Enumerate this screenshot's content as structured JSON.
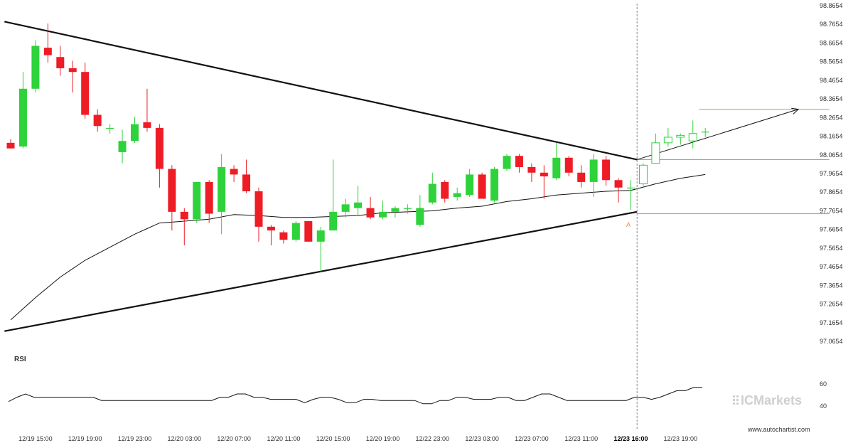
{
  "chart_data": {
    "type": "candlestick",
    "y_axis": {
      "min": 97.0654,
      "max": 98.8654,
      "ticks": [
        "98.8654",
        "98.7654",
        "98.6654",
        "98.5654",
        "98.4654",
        "98.3654",
        "98.2654",
        "98.1654",
        "98.0654",
        "97.9654",
        "97.8654",
        "97.7654",
        "97.6654",
        "97.5654",
        "97.4654",
        "97.3654",
        "97.2654",
        "97.1654",
        "97.0654"
      ]
    },
    "x_axis": {
      "tick_labels": [
        "12/19 15:00",
        "12/19 19:00",
        "12/19 23:00",
        "12/20 03:00",
        "12/20 07:00",
        "12/20 11:00",
        "12/20 15:00",
        "12/20 19:00",
        "12/22 23:00",
        "12/23 03:00",
        "12/23 07:00",
        "12/23 11:00",
        "12/23 16:00",
        "12/23 19:00"
      ],
      "tick_candle_index": [
        2,
        6,
        10,
        14,
        18,
        22,
        26,
        30,
        34,
        38,
        42,
        46,
        50,
        54
      ],
      "highlight_label": "12/23 16:00",
      "vertical_marker_index": 50.5
    },
    "candles": [
      {
        "o": 98.13,
        "h": 98.15,
        "l": 98.1,
        "c": 98.1
      },
      {
        "o": 98.11,
        "h": 98.51,
        "l": 98.1,
        "c": 98.42
      },
      {
        "o": 98.42,
        "h": 98.68,
        "l": 98.4,
        "c": 98.65
      },
      {
        "o": 98.64,
        "h": 98.77,
        "l": 98.56,
        "c": 98.6
      },
      {
        "o": 98.59,
        "h": 98.65,
        "l": 98.49,
        "c": 98.53
      },
      {
        "o": 98.53,
        "h": 98.57,
        "l": 98.4,
        "c": 98.51
      },
      {
        "o": 98.51,
        "h": 98.56,
        "l": 98.26,
        "c": 98.28
      },
      {
        "o": 98.28,
        "h": 98.31,
        "l": 98.19,
        "c": 98.22
      },
      {
        "o": 98.21,
        "h": 98.23,
        "l": 98.18,
        "c": 98.21
      },
      {
        "o": 98.08,
        "h": 98.2,
        "l": 98.02,
        "c": 98.14
      },
      {
        "o": 98.14,
        "h": 98.27,
        "l": 98.13,
        "c": 98.23
      },
      {
        "o": 98.24,
        "h": 98.42,
        "l": 98.19,
        "c": 98.21
      },
      {
        "o": 98.21,
        "h": 98.23,
        "l": 97.89,
        "c": 97.99
      },
      {
        "o": 97.99,
        "h": 98.01,
        "l": 97.66,
        "c": 97.76
      },
      {
        "o": 97.76,
        "h": 97.78,
        "l": 97.58,
        "c": 97.72
      },
      {
        "o": 97.72,
        "h": 97.92,
        "l": 97.7,
        "c": 97.92
      },
      {
        "o": 97.92,
        "h": 97.93,
        "l": 97.7,
        "c": 97.75
      },
      {
        "o": 97.76,
        "h": 98.07,
        "l": 97.64,
        "c": 98.0
      },
      {
        "o": 97.99,
        "h": 98.01,
        "l": 97.92,
        "c": 97.96
      },
      {
        "o": 97.96,
        "h": 98.04,
        "l": 97.86,
        "c": 97.87
      },
      {
        "o": 97.87,
        "h": 97.89,
        "l": 97.6,
        "c": 97.68
      },
      {
        "o": 97.68,
        "h": 97.69,
        "l": 97.58,
        "c": 97.66
      },
      {
        "o": 97.65,
        "h": 97.66,
        "l": 97.59,
        "c": 97.61
      },
      {
        "o": 97.61,
        "h": 97.71,
        "l": 97.6,
        "c": 97.7
      },
      {
        "o": 97.71,
        "h": 97.71,
        "l": 97.6,
        "c": 97.6
      },
      {
        "o": 97.6,
        "h": 97.68,
        "l": 97.44,
        "c": 97.66
      },
      {
        "o": 97.66,
        "h": 98.04,
        "l": 97.66,
        "c": 97.76
      },
      {
        "o": 97.76,
        "h": 97.83,
        "l": 97.73,
        "c": 97.8
      },
      {
        "o": 97.78,
        "h": 97.9,
        "l": 97.74,
        "c": 97.81
      },
      {
        "o": 97.78,
        "h": 97.84,
        "l": 97.72,
        "c": 97.73
      },
      {
        "o": 97.73,
        "h": 97.82,
        "l": 97.72,
        "c": 97.76
      },
      {
        "o": 97.76,
        "h": 97.79,
        "l": 97.73,
        "c": 97.78
      },
      {
        "o": 97.78,
        "h": 97.8,
        "l": 97.75,
        "c": 97.78
      },
      {
        "o": 97.69,
        "h": 97.85,
        "l": 97.68,
        "c": 97.78
      },
      {
        "o": 97.81,
        "h": 97.97,
        "l": 97.8,
        "c": 97.91
      },
      {
        "o": 97.92,
        "h": 97.93,
        "l": 97.81,
        "c": 97.83
      },
      {
        "o": 97.84,
        "h": 97.89,
        "l": 97.82,
        "c": 97.86
      },
      {
        "o": 97.85,
        "h": 97.99,
        "l": 97.84,
        "c": 97.96
      },
      {
        "o": 97.96,
        "h": 97.97,
        "l": 97.83,
        "c": 97.83
      },
      {
        "o": 97.82,
        "h": 98.0,
        "l": 97.81,
        "c": 97.99
      },
      {
        "o": 97.99,
        "h": 98.07,
        "l": 97.98,
        "c": 98.06
      },
      {
        "o": 98.06,
        "h": 98.07,
        "l": 97.97,
        "c": 98.0
      },
      {
        "o": 98.0,
        "h": 98.02,
        "l": 97.92,
        "c": 97.97
      },
      {
        "o": 97.97,
        "h": 98.01,
        "l": 97.83,
        "c": 97.95
      },
      {
        "o": 97.94,
        "h": 98.13,
        "l": 97.93,
        "c": 98.05
      },
      {
        "o": 98.05,
        "h": 98.06,
        "l": 97.95,
        "c": 97.97
      },
      {
        "o": 97.97,
        "h": 98.01,
        "l": 97.89,
        "c": 97.92
      },
      {
        "o": 97.92,
        "h": 98.07,
        "l": 97.84,
        "c": 98.04
      },
      {
        "o": 98.04,
        "h": 98.06,
        "l": 97.9,
        "c": 97.93
      },
      {
        "o": 97.93,
        "h": 97.94,
        "l": 97.81,
        "c": 97.89
      },
      {
        "o": 97.89,
        "h": 97.93,
        "l": 97.77,
        "c": 97.89
      },
      {
        "o": 97.91,
        "h": 98.02,
        "l": 97.9,
        "c": 98.01
      },
      {
        "o": 98.02,
        "h": 98.18,
        "l": 98.02,
        "c": 98.13
      },
      {
        "o": 98.13,
        "h": 98.21,
        "l": 98.11,
        "c": 98.16
      },
      {
        "o": 98.16,
        "h": 98.18,
        "l": 98.12,
        "c": 98.17
      },
      {
        "o": 98.14,
        "h": 98.25,
        "l": 98.1,
        "c": 98.18
      },
      {
        "o": 98.19,
        "h": 98.21,
        "l": 98.16,
        "c": 98.19
      }
    ],
    "forecast_from_index": 51,
    "moving_average": [
      {
        "i": 0,
        "v": 97.18
      },
      {
        "i": 2,
        "v": 97.3
      },
      {
        "i": 4,
        "v": 97.41
      },
      {
        "i": 6,
        "v": 97.5
      },
      {
        "i": 8,
        "v": 97.57
      },
      {
        "i": 10,
        "v": 97.64
      },
      {
        "i": 11,
        "v": 97.67
      },
      {
        "i": 12,
        "v": 97.7
      },
      {
        "i": 14,
        "v": 97.71
      },
      {
        "i": 16,
        "v": 97.72
      },
      {
        "i": 18,
        "v": 97.745
      },
      {
        "i": 20,
        "v": 97.74
      },
      {
        "i": 22,
        "v": 97.73
      },
      {
        "i": 24,
        "v": 97.73
      },
      {
        "i": 26,
        "v": 97.735
      },
      {
        "i": 28,
        "v": 97.74
      },
      {
        "i": 30,
        "v": 97.755
      },
      {
        "i": 32,
        "v": 97.76
      },
      {
        "i": 34,
        "v": 97.765
      },
      {
        "i": 36,
        "v": 97.78
      },
      {
        "i": 38,
        "v": 97.79
      },
      {
        "i": 40,
        "v": 97.815
      },
      {
        "i": 42,
        "v": 97.83
      },
      {
        "i": 44,
        "v": 97.85
      },
      {
        "i": 46,
        "v": 97.86
      },
      {
        "i": 48,
        "v": 97.87
      },
      {
        "i": 50,
        "v": 97.875
      },
      {
        "i": 52,
        "v": 97.91
      },
      {
        "i": 54,
        "v": 97.94
      },
      {
        "i": 56,
        "v": 97.96
      }
    ],
    "trendlines": [
      {
        "name": "upper-resistance",
        "from": {
          "i": -0.5,
          "v": 98.78
        },
        "to": {
          "i": 50.5,
          "v": 98.04
        }
      },
      {
        "name": "lower-support",
        "from": {
          "i": -0.5,
          "v": 97.12
        },
        "to": {
          "i": 50.5,
          "v": 97.76
        }
      }
    ],
    "projection_arrow": {
      "from": {
        "i": 50.5,
        "v": 98.04
      },
      "to": {
        "i": 63.5,
        "v": 98.31
      }
    },
    "levels": [
      {
        "name": "target-level",
        "value": 98.31,
        "from_i": 55.5,
        "to_i": 66
      },
      {
        "name": "breakout-level",
        "value": 98.04,
        "from_i": 50.5,
        "to_i": 66
      },
      {
        "name": "support-level",
        "value": 97.75,
        "from_i": 50.5,
        "to_i": 66
      }
    ],
    "point_label": {
      "text": "A",
      "i": 49.8,
      "v": 97.68
    },
    "rsi": {
      "label": "RSI",
      "ticks": [
        "60",
        "40"
      ],
      "tick_values": [
        60,
        40
      ],
      "values": [
        44,
        48,
        51,
        48,
        48,
        48,
        48,
        48,
        48,
        48,
        48,
        45,
        45,
        45,
        45,
        45,
        45,
        45,
        45,
        45,
        45,
        45,
        45,
        45,
        45,
        48,
        48,
        51,
        51,
        48,
        48,
        46,
        46,
        46,
        46,
        43,
        46,
        48,
        48,
        46,
        43,
        43,
        46,
        46,
        45,
        45,
        45,
        45,
        45,
        42,
        42,
        45,
        45,
        48,
        48,
        46,
        46,
        46,
        48,
        48,
        45,
        45,
        48,
        51,
        51,
        48,
        45,
        45,
        45,
        45,
        45,
        45,
        45,
        45,
        48,
        48,
        46,
        48,
        51,
        54,
        54,
        57,
        57
      ],
      "v_min": 36,
      "v_max": 64
    },
    "colors": {
      "bull": "#2ed23a",
      "bear": "#ee1c25",
      "level": "#f0883c",
      "trendline": "#111111",
      "marker": "#888888"
    }
  },
  "watermark": {
    "brand": "ICMarkets",
    "site": "www.autochartist.com"
  }
}
